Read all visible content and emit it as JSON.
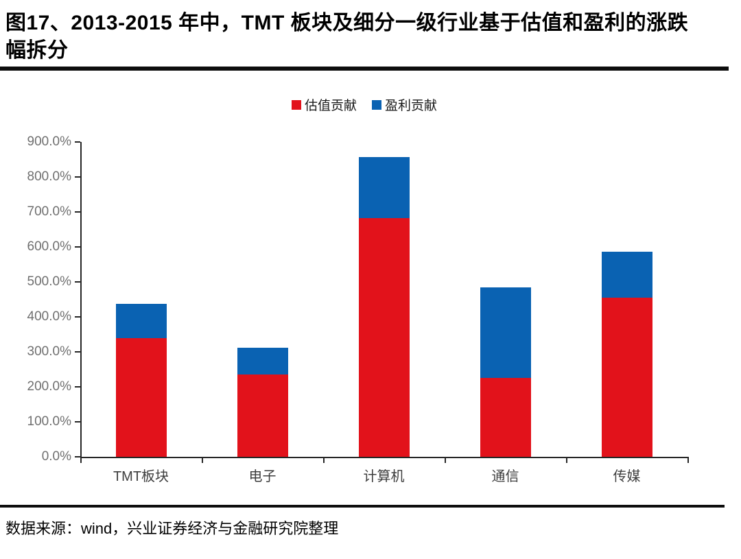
{
  "figure": {
    "title": "图17、2013-2015 年中，TMT 板块及细分一级行业基于估值和盈利的涨跌幅拆分",
    "source": "数据来源：wind，兴业证券经济与金融研究院整理"
  },
  "colors": {
    "valuation_red": "#e2121b",
    "earnings_blue": "#0a62b2",
    "axis": "#262626",
    "y_label_gray": "#6f6f6f"
  },
  "chart_data": {
    "type": "bar",
    "stacked": true,
    "title": "",
    "xlabel": "",
    "ylabel": "",
    "unit": "%",
    "categories": [
      "TMT板块",
      "电子",
      "计算机",
      "通信",
      "传媒"
    ],
    "series": [
      {
        "name": "估值贡献",
        "color": "#e2121b",
        "values": [
          340,
          235,
          683,
          225,
          455
        ]
      },
      {
        "name": "盈利贡献",
        "color": "#0a62b2",
        "values": [
          98,
          77,
          174,
          260,
          131
        ]
      }
    ],
    "totals": [
      438,
      312,
      857,
      485,
      586
    ],
    "ylim": [
      0,
      900
    ],
    "ytick_step": 100,
    "ytick_labels": [
      "0.0%",
      "100.0%",
      "200.0%",
      "300.0%",
      "400.0%",
      "500.0%",
      "600.0%",
      "700.0%",
      "800.0%",
      "900.0%"
    ],
    "grid": false,
    "legend_position": "top-center"
  }
}
